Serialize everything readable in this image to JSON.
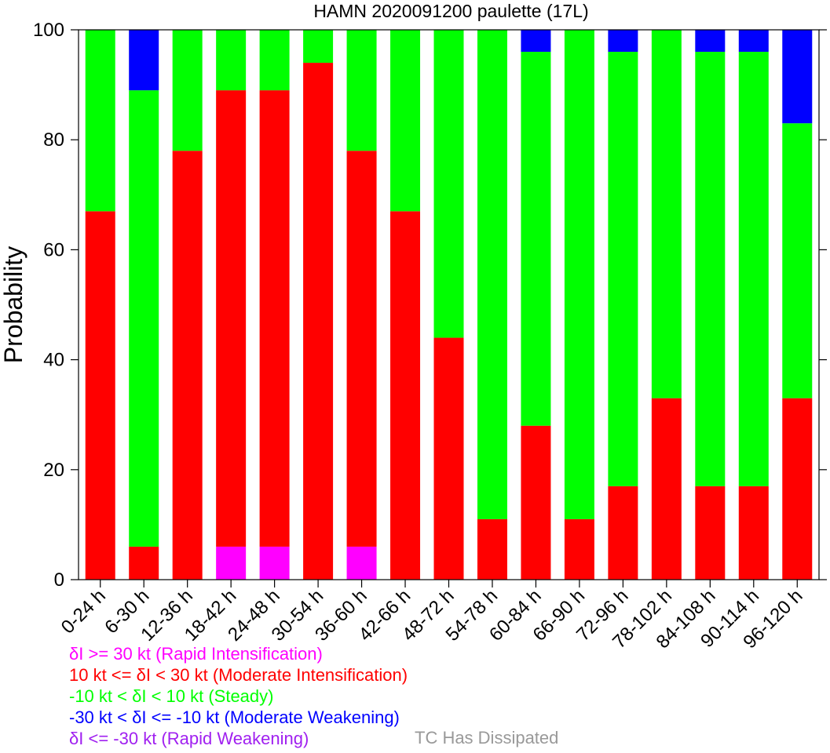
{
  "chart_data": {
    "type": "bar",
    "stacked": true,
    "title": "HAMN 2020091200 paulette (17L)",
    "xlabel": "",
    "ylabel": "Probability",
    "ylim": [
      0,
      100
    ],
    "yticks": [
      0,
      20,
      40,
      60,
      80,
      100
    ],
    "grid": false,
    "categories": [
      "0-24 h",
      "6-30 h",
      "12-36 h",
      "18-42 h",
      "24-48 h",
      "30-54 h",
      "36-60 h",
      "42-66 h",
      "48-72 h",
      "54-78 h",
      "60-84 h",
      "66-90 h",
      "72-96 h",
      "78-102 h",
      "84-108 h",
      "90-114 h",
      "96-120 h"
    ],
    "series": [
      {
        "name": "Rapid Intensification",
        "color": "#ff00ff",
        "values": [
          0,
          0,
          0,
          6,
          6,
          0,
          6,
          0,
          0,
          0,
          0,
          0,
          0,
          0,
          0,
          0,
          0
        ]
      },
      {
        "name": "Moderate Intensification",
        "color": "#ff0000",
        "values": [
          67,
          6,
          78,
          83,
          83,
          94,
          72,
          67,
          44,
          11,
          28,
          11,
          17,
          33,
          17,
          17,
          33
        ]
      },
      {
        "name": "Steady",
        "color": "#00ff00",
        "values": [
          33,
          83,
          22,
          11,
          11,
          6,
          22,
          33,
          56,
          89,
          68,
          89,
          79,
          67,
          79,
          79,
          50
        ]
      },
      {
        "name": "Moderate Weakening",
        "color": "#0000ff",
        "values": [
          0,
          11,
          0,
          0,
          0,
          0,
          0,
          0,
          0,
          0,
          4,
          0,
          4,
          0,
          4,
          4,
          17
        ]
      },
      {
        "name": "Rapid Weakening",
        "color": "#a020f0",
        "values": [
          0,
          0,
          0,
          0,
          0,
          0,
          0,
          0,
          0,
          0,
          0,
          0,
          0,
          0,
          0,
          0,
          0
        ]
      }
    ],
    "legend": [
      {
        "text": "δI >= 30 kt (Rapid Intensification)",
        "color": "#ff00ff"
      },
      {
        "text": "10 kt <= δI < 30 kt (Moderate Intensification)",
        "color": "#ff0000"
      },
      {
        "text": "-10 kt < δI < 10 kt (Steady)",
        "color": "#00ff00"
      },
      {
        "text": "-30 kt < δI <= -10 kt (Moderate Weakening)",
        "color": "#0000ff"
      },
      {
        "text": "δI <= -30 kt (Rapid Weakening)",
        "color": "#a020f0"
      }
    ],
    "note": {
      "text": "TC Has Dissipated",
      "color": "#999999"
    }
  }
}
